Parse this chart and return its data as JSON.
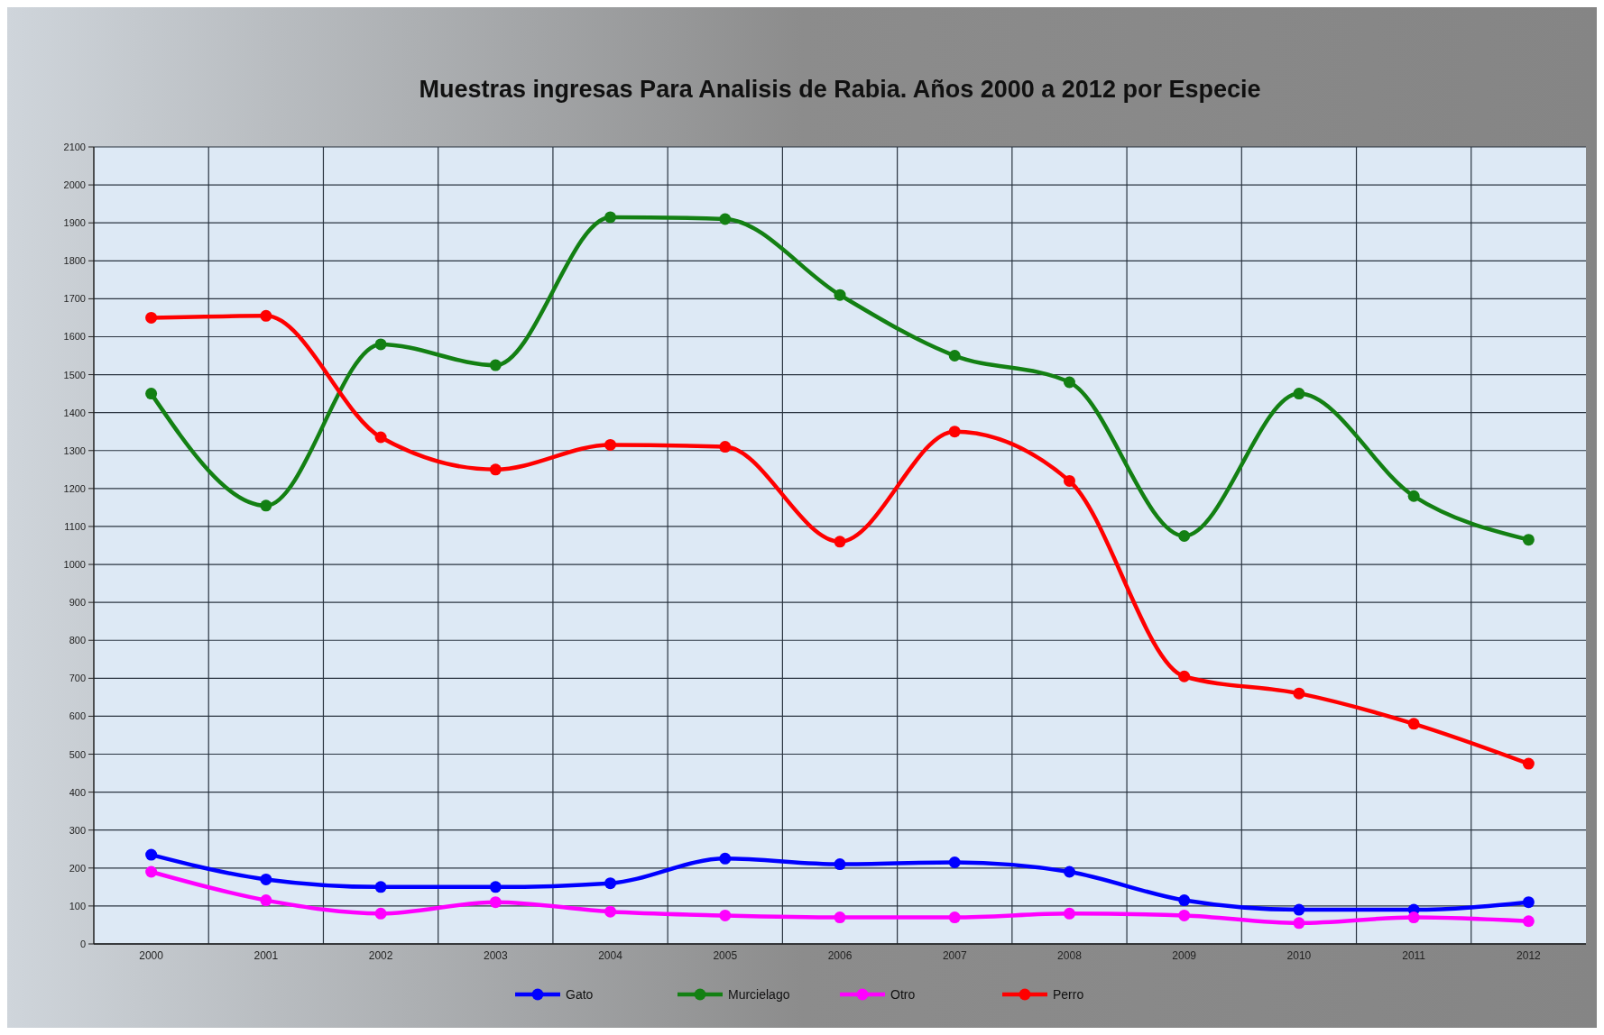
{
  "chart_data": {
    "type": "line",
    "title": "Muestras ingresas Para Analisis de Rabia.  Años 2000 a 2012 por Especie",
    "categories": [
      "2000",
      "2001",
      "2002",
      "2003",
      "2004",
      "2005",
      "2006",
      "2007",
      "2008",
      "2009",
      "2010",
      "2011",
      "2012"
    ],
    "series": [
      {
        "name": "Gato",
        "color": "#0000ff",
        "values": [
          235,
          170,
          150,
          150,
          160,
          225,
          210,
          215,
          190,
          115,
          90,
          90,
          110
        ]
      },
      {
        "name": "Murcielago",
        "color": "#138013",
        "values": [
          1450,
          1155,
          1580,
          1525,
          1915,
          1910,
          1710,
          1550,
          1480,
          1075,
          1450,
          1180,
          1065
        ]
      },
      {
        "name": "Otro",
        "color": "#ff00ff",
        "values": [
          190,
          115,
          80,
          110,
          85,
          75,
          70,
          70,
          80,
          75,
          55,
          70,
          60
        ]
      },
      {
        "name": "Perro",
        "color": "#ff0000",
        "values": [
          1650,
          1655,
          1335,
          1250,
          1315,
          1310,
          1060,
          1350,
          1220,
          705,
          660,
          580,
          475
        ]
      }
    ],
    "ylim": [
      0,
      2100
    ],
    "yticks": [
      0,
      100,
      200,
      300,
      400,
      500,
      600,
      700,
      800,
      900,
      1000,
      1100,
      1200,
      1300,
      1400,
      1500,
      1600,
      1700,
      1800,
      1900,
      2000,
      2100
    ],
    "grid": true,
    "legend": "bottom",
    "marker": "circle",
    "line_style": "solid"
  }
}
